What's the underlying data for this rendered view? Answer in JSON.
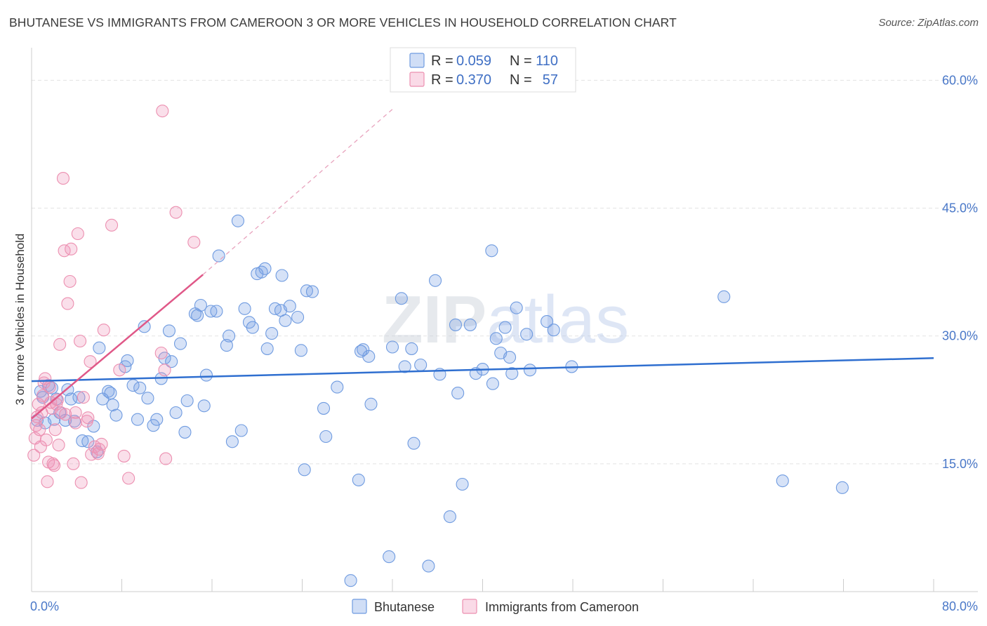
{
  "title": "BHUTANESE VS IMMIGRANTS FROM CAMEROON 3 OR MORE VEHICLES IN HOUSEHOLD CORRELATION CHART",
  "source": "Source: ZipAtlas.com",
  "watermark": "ZIPatlas",
  "colors": {
    "blue_fill": "rgba(120,160,230,0.30)",
    "blue_stroke": "#6f9be0",
    "blue_line": "#2f6fd0",
    "pink_fill": "rgba(240,150,185,0.30)",
    "pink_stroke": "#ec8fb0",
    "pink_line": "#e05888",
    "axis_text": "#4a78c8",
    "grid": "#e3e3e3"
  },
  "legend_top": {
    "rows": [
      {
        "r_label": "R =",
        "r_value": "0.059",
        "n_label": "N =",
        "n_value": "110"
      },
      {
        "r_label": "R =",
        "r_value": "0.370",
        "n_label": "N =",
        "n_value": "57"
      }
    ]
  },
  "legend_bottom": {
    "items": [
      "Bhutanese",
      "Immigrants from Cameroon"
    ]
  },
  "chart_data": {
    "type": "scatter",
    "title": "BHUTANESE VS IMMIGRANTS FROM CAMEROON 3 OR MORE VEHICLES IN HOUSEHOLD CORRELATION CHART",
    "xlabel": "",
    "ylabel": "3 or more Vehicles in Household",
    "xlim": [
      0,
      80
    ],
    "ylim": [
      0,
      63
    ],
    "x_tick_labels": [
      "0.0%",
      "80.0%"
    ],
    "y_ticks": [
      15,
      30,
      45,
      60
    ],
    "y_tick_labels": [
      "15.0%",
      "30.0%",
      "45.0%",
      "60.0%"
    ],
    "grid": true,
    "legend_position": "top-center",
    "series": [
      {
        "name": "Bhutanese",
        "color": "#6f9be0",
        "r": 0.059,
        "n": 110,
        "trend": {
          "x": [
            0,
            80
          ],
          "y": [
            24.7,
            27.4
          ]
        },
        "points": [
          [
            0.5,
            20.1
          ],
          [
            0.8,
            23.5
          ],
          [
            1.0,
            22.8
          ],
          [
            1.2,
            19.8
          ],
          [
            1.5,
            24.2
          ],
          [
            1.8,
            23.9
          ],
          [
            2.0,
            20.2
          ],
          [
            2.2,
            22.6
          ],
          [
            2.5,
            21.0
          ],
          [
            3.0,
            20.1
          ],
          [
            3.2,
            23.7
          ],
          [
            3.5,
            22.6
          ],
          [
            3.8,
            20.0
          ],
          [
            4.2,
            22.8
          ],
          [
            4.5,
            17.7
          ],
          [
            5.0,
            17.6
          ],
          [
            5.5,
            19.4
          ],
          [
            5.8,
            16.4
          ],
          [
            6.0,
            28.6
          ],
          [
            6.3,
            22.6
          ],
          [
            6.8,
            23.5
          ],
          [
            7.0,
            23.3
          ],
          [
            7.2,
            21.9
          ],
          [
            7.5,
            20.7
          ],
          [
            8.3,
            26.4
          ],
          [
            8.5,
            27.1
          ],
          [
            9.0,
            24.2
          ],
          [
            9.4,
            20.2
          ],
          [
            9.6,
            23.9
          ],
          [
            10.0,
            31.1
          ],
          [
            10.3,
            22.7
          ],
          [
            10.8,
            19.5
          ],
          [
            11.1,
            20.2
          ],
          [
            11.5,
            25.0
          ],
          [
            11.8,
            27.4
          ],
          [
            12.2,
            30.6
          ],
          [
            12.4,
            27.0
          ],
          [
            12.8,
            21.0
          ],
          [
            13.2,
            29.1
          ],
          [
            13.6,
            18.7
          ],
          [
            13.8,
            22.4
          ],
          [
            14.5,
            32.6
          ],
          [
            14.7,
            32.4
          ],
          [
            15.0,
            33.6
          ],
          [
            15.3,
            21.8
          ],
          [
            15.5,
            25.4
          ],
          [
            15.9,
            32.9
          ],
          [
            16.4,
            32.9
          ],
          [
            16.6,
            39.4
          ],
          [
            17.3,
            28.9
          ],
          [
            17.5,
            30.0
          ],
          [
            17.8,
            17.6
          ],
          [
            18.3,
            43.5
          ],
          [
            18.6,
            18.9
          ],
          [
            18.9,
            33.2
          ],
          [
            19.3,
            31.6
          ],
          [
            19.6,
            31.0
          ],
          [
            20.0,
            37.3
          ],
          [
            20.4,
            37.5
          ],
          [
            20.7,
            37.9
          ],
          [
            20.9,
            28.5
          ],
          [
            21.3,
            30.3
          ],
          [
            21.6,
            33.2
          ],
          [
            22.1,
            33.0
          ],
          [
            22.2,
            37.1
          ],
          [
            22.5,
            31.8
          ],
          [
            22.9,
            33.5
          ],
          [
            23.6,
            32.2
          ],
          [
            23.9,
            28.3
          ],
          [
            24.4,
            35.3
          ],
          [
            24.9,
            35.2
          ],
          [
            25.9,
            21.5
          ],
          [
            26.1,
            18.2
          ],
          [
            27.1,
            24.0
          ],
          [
            28.3,
            1.3
          ],
          [
            29.0,
            13.1
          ],
          [
            29.4,
            28.4
          ],
          [
            29.9,
            27.6
          ],
          [
            30.1,
            22.0
          ],
          [
            31.7,
            4.1
          ],
          [
            32.0,
            28.7
          ],
          [
            32.8,
            34.4
          ],
          [
            33.1,
            26.4
          ],
          [
            33.7,
            28.5
          ],
          [
            33.9,
            17.4
          ],
          [
            34.5,
            26.6
          ],
          [
            35.2,
            3.0
          ],
          [
            35.8,
            36.5
          ],
          [
            36.2,
            25.5
          ],
          [
            37.1,
            8.8
          ],
          [
            37.6,
            31.3
          ],
          [
            37.8,
            23.3
          ],
          [
            38.2,
            12.6
          ],
          [
            38.9,
            31.3
          ],
          [
            39.4,
            25.6
          ],
          [
            40.0,
            26.1
          ],
          [
            40.8,
            40.0
          ],
          [
            40.9,
            24.4
          ],
          [
            41.2,
            29.7
          ],
          [
            41.6,
            28.0
          ],
          [
            42.0,
            31.0
          ],
          [
            42.4,
            27.5
          ],
          [
            42.6,
            25.6
          ],
          [
            43.0,
            33.3
          ],
          [
            43.9,
            30.2
          ],
          [
            44.2,
            26.0
          ],
          [
            45.7,
            31.7
          ],
          [
            46.3,
            30.7
          ],
          [
            47.9,
            26.4
          ],
          [
            61.4,
            34.6
          ],
          [
            66.6,
            13.0
          ],
          [
            71.9,
            12.2
          ],
          [
            29.2,
            28.2
          ],
          [
            24.2,
            14.3
          ]
        ]
      },
      {
        "name": "Immigrants from Cameroon",
        "color": "#ec8fb0",
        "r": 0.37,
        "n": 57,
        "trend": {
          "x": [
            0,
            15.2
          ],
          "y": [
            20.3,
            37.2
          ]
        },
        "trend_dashed": {
          "x": [
            15.2,
            32
          ],
          "y": [
            37.2,
            56.6
          ]
        },
        "points": [
          [
            0.2,
            16.0
          ],
          [
            0.3,
            18.0
          ],
          [
            0.4,
            19.5
          ],
          [
            0.5,
            20.5
          ],
          [
            0.6,
            22.0
          ],
          [
            0.7,
            19.0
          ],
          [
            0.8,
            17.0
          ],
          [
            0.9,
            21.0
          ],
          [
            1.0,
            23.0
          ],
          [
            1.1,
            24.5
          ],
          [
            1.2,
            25.0
          ],
          [
            1.3,
            17.8
          ],
          [
            1.4,
            12.9
          ],
          [
            1.5,
            15.2
          ],
          [
            1.6,
            24.0
          ],
          [
            1.7,
            22.2
          ],
          [
            1.8,
            21.5
          ],
          [
            1.9,
            15.0
          ],
          [
            2.0,
            14.8
          ],
          [
            2.1,
            19.0
          ],
          [
            2.2,
            22.0
          ],
          [
            2.3,
            22.5
          ],
          [
            2.4,
            17.2
          ],
          [
            2.5,
            29.0
          ],
          [
            2.6,
            21.0
          ],
          [
            2.8,
            48.5
          ],
          [
            2.9,
            40.0
          ],
          [
            3.0,
            20.8
          ],
          [
            3.2,
            33.8
          ],
          [
            3.4,
            36.4
          ],
          [
            3.5,
            40.2
          ],
          [
            3.7,
            15.0
          ],
          [
            3.9,
            21.0
          ],
          [
            3.9,
            19.8
          ],
          [
            4.1,
            42.0
          ],
          [
            4.3,
            29.4
          ],
          [
            4.4,
            12.8
          ],
          [
            4.6,
            22.8
          ],
          [
            4.9,
            20.0
          ],
          [
            5.0,
            20.4
          ],
          [
            5.2,
            27.0
          ],
          [
            5.3,
            16.1
          ],
          [
            5.6,
            17.0
          ],
          [
            5.9,
            16.2
          ],
          [
            6.0,
            16.7
          ],
          [
            6.2,
            17.3
          ],
          [
            6.4,
            30.7
          ],
          [
            7.1,
            43.0
          ],
          [
            7.8,
            26.0
          ],
          [
            8.2,
            15.9
          ],
          [
            8.6,
            13.3
          ],
          [
            11.5,
            28.0
          ],
          [
            11.8,
            26.0
          ],
          [
            11.9,
            15.6
          ],
          [
            12.8,
            44.5
          ],
          [
            14.4,
            41.0
          ],
          [
            11.6,
            56.4
          ]
        ]
      }
    ]
  }
}
